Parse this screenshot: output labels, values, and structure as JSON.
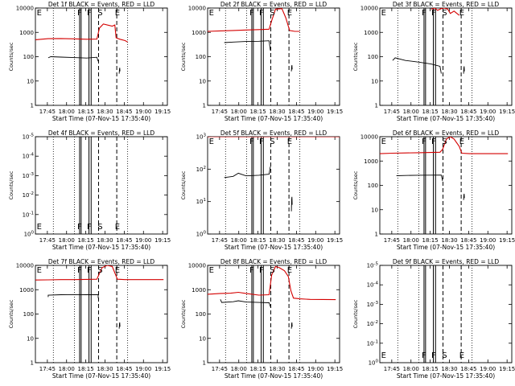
{
  "colors": {
    "events": "#000000",
    "lld": "#d40000",
    "background": "#ffffff"
  },
  "shared": {
    "xlabel": "Start Time (07-Nov-15 17:35:40)",
    "ylabel": "Counts/sec",
    "xticks": [
      "17:45",
      "18:00",
      "18:15",
      "18:30",
      "18:45",
      "19:00",
      "19:15"
    ],
    "x_tick_minutes": [
      9.33,
      24.33,
      39.33,
      54.33,
      69.33,
      84.33,
      99.33
    ],
    "xlim_minutes": [
      0,
      103
    ],
    "ylim": [
      1,
      10000
    ],
    "yscale": "log",
    "yticks": [
      "1",
      "10",
      "100",
      "1000",
      "10000"
    ],
    "ytick_values": [
      1,
      10,
      100,
      1000,
      10000
    ]
  },
  "chart_data": [
    {
      "type": "line",
      "title": "Det 1f BLACK = Events, RED = LLD",
      "x_unit": "minutes after 17:35:40",
      "ylim": [
        1,
        10000
      ],
      "dotted_lines": [
        14,
        30.5,
        72
      ],
      "solid_lines": [
        34.5,
        35.7,
        41.8,
        43.5
      ],
      "dashed_lines": [
        49.3,
        63.5
      ],
      "markers": [
        {
          "label": "E",
          "x": 3
        },
        {
          "label": "F",
          "x": 34.5
        },
        {
          "label": "F",
          "x": 42
        },
        {
          "label": "S",
          "x": 50.5
        },
        {
          "label": "E",
          "x": 64
        }
      ],
      "series": [
        {
          "color": "#d40000",
          "x": [
            0,
            10,
            20,
            30,
            40,
            48,
            50,
            53,
            60,
            62,
            63,
            66,
            70,
            72
          ],
          "y": [
            500,
            550,
            560,
            540,
            520,
            530,
            1500,
            2200,
            1800,
            2000,
            600,
            520,
            460,
            400
          ]
        },
        {
          "color": "#000000",
          "x": [
            10,
            12,
            20,
            30,
            40,
            48,
            49
          ],
          "y": [
            90,
            100,
            96,
            92,
            88,
            95,
            65
          ]
        },
        {
          "color": "#000000",
          "x": [
            65.4,
            65.6,
            65.8,
            66
          ],
          "y": [
            20,
            30,
            35,
            25
          ]
        }
      ]
    },
    {
      "type": "line",
      "title": "Det 2f BLACK = Events, RED = LLD",
      "x_unit": "minutes after 17:35:40",
      "ylim": [
        1,
        10000
      ],
      "dotted_lines": [
        14,
        30.5,
        72
      ],
      "solid_lines": [
        34.5,
        35.7,
        41.8,
        43.5
      ],
      "dashed_lines": [
        49.3,
        63.5
      ],
      "markers": [
        {
          "label": "E",
          "x": 3
        },
        {
          "label": "F",
          "x": 34.5
        },
        {
          "label": "F",
          "x": 42
        },
        {
          "label": "S",
          "x": 50.5
        },
        {
          "label": "E",
          "x": 64
        }
      ],
      "series": [
        {
          "color": "#d40000",
          "x": [
            0,
            10,
            20,
            30,
            40,
            48,
            50,
            53,
            58,
            61,
            64,
            68,
            72
          ],
          "y": [
            1100,
            1150,
            1200,
            1250,
            1300,
            1350,
            3000,
            9000,
            9500,
            4000,
            1200,
            1100,
            1100
          ]
        },
        {
          "color": "#000000",
          "x": [
            13,
            20,
            30,
            40,
            48,
            49
          ],
          "y": [
            380,
            400,
            420,
            430,
            450,
            180
          ]
        },
        {
          "color": "#000000",
          "x": [
            65.4,
            65.6,
            65.8,
            66
          ],
          "y": [
            25,
            40,
            45,
            30
          ]
        }
      ]
    },
    {
      "type": "line",
      "title": "Det 3f BLACK = Events, RED = LLD",
      "x_unit": "minutes after 17:35:40",
      "ylim": [
        1,
        10000
      ],
      "dotted_lines": [
        14,
        30.5,
        72
      ],
      "solid_lines": [
        34.5,
        35.7,
        41.8,
        43.5
      ],
      "dashed_lines": [
        49.3,
        63.5
      ],
      "markers": [
        {
          "label": "E",
          "x": 3
        },
        {
          "label": "F",
          "x": 34.5
        },
        {
          "label": "F",
          "x": 42
        },
        {
          "label": "S",
          "x": 50.5
        },
        {
          "label": "E",
          "x": 64
        }
      ],
      "series": [
        {
          "color": "#d40000",
          "x": [
            40,
            43,
            45,
            48,
            50,
            53,
            55,
            58,
            62
          ],
          "y": [
            9000,
            10000,
            8000,
            9500,
            10000,
            9000,
            6000,
            7500,
            5000
          ]
        },
        {
          "color": "#000000",
          "x": [
            10,
            12,
            20,
            30,
            40,
            47,
            48
          ],
          "y": [
            70,
            90,
            70,
            60,
            50,
            40,
            20
          ]
        },
        {
          "color": "#000000",
          "x": [
            65.4,
            65.6,
            65.8,
            66
          ],
          "y": [
            20,
            35,
            40,
            25
          ]
        }
      ]
    },
    {
      "type": "line",
      "title": "Det 4f BLACK = Events, RED = LLD",
      "x_unit": "minutes after 17:35:40",
      "ylim": [
        1,
        1e-05
      ],
      "yticks": [
        "10^-5",
        "10^-4",
        "10^-3",
        "10^-2",
        "10^-1",
        "10^0"
      ],
      "dotted_lines": [
        14,
        30.5,
        72
      ],
      "solid_lines": [
        34.5,
        35.7,
        41.8,
        43.5
      ],
      "dashed_lines": [
        49.3,
        63.5
      ],
      "markers": [
        {
          "label": "E",
          "x": 3
        },
        {
          "label": "F",
          "x": 34.5
        },
        {
          "label": "F",
          "x": 42
        },
        {
          "label": "S",
          "x": 50.5
        },
        {
          "label": "E",
          "x": 64
        }
      ],
      "series": []
    },
    {
      "type": "line",
      "title": "Det 5f BLACK = Events, RED = LLD",
      "x_unit": "minutes after 17:35:40",
      "ylim": [
        1,
        1000
      ],
      "yticks": [
        "10^0",
        "10^1",
        "10^2",
        "10^3"
      ],
      "dotted_lines": [
        14,
        30.5,
        72
      ],
      "solid_lines": [
        34.5,
        35.7,
        41.8,
        43.5
      ],
      "dashed_lines": [
        49.3,
        63.5
      ],
      "markers": [
        {
          "label": "E",
          "x": 3
        },
        {
          "label": "F",
          "x": 34.5
        },
        {
          "label": "F",
          "x": 42
        },
        {
          "label": "S",
          "x": 50.5
        },
        {
          "label": "E",
          "x": 64
        }
      ],
      "series": [
        {
          "color": "#d40000",
          "x": [
            0,
            103
          ],
          "y": [
            1000,
            1000
          ]
        },
        {
          "color": "#000000",
          "x": [
            13,
            20,
            24,
            30,
            40,
            48,
            49
          ],
          "y": [
            55,
            60,
            75,
            62,
            65,
            70,
            120
          ]
        },
        {
          "color": "#000000",
          "x": [
            65.4,
            65.6,
            65.8,
            66
          ],
          "y": [
            5,
            12,
            14,
            8
          ]
        }
      ]
    },
    {
      "type": "line",
      "title": "Det 6f BLACK = Events, RED = LLD",
      "x_unit": "minutes after 17:35:40",
      "ylim": [
        1,
        10000
      ],
      "dotted_lines": [
        14,
        30.5,
        72
      ],
      "solid_lines": [
        34.5,
        35.7,
        41.8,
        43.5
      ],
      "dashed_lines": [
        49.3,
        63.5
      ],
      "markers": [
        {
          "label": "E",
          "x": 3
        },
        {
          "label": "F",
          "x": 34.5
        },
        {
          "label": "F",
          "x": 42
        },
        {
          "label": "S",
          "x": 50.5
        },
        {
          "label": "E",
          "x": 64
        }
      ],
      "series": [
        {
          "color": "#d40000",
          "x": [
            0,
            10,
            20,
            30,
            40,
            47,
            49,
            52,
            55,
            58,
            62,
            64,
            70,
            80,
            100
          ],
          "y": [
            2000,
            2100,
            2150,
            2200,
            2250,
            2300,
            3000,
            8000,
            10000,
            8000,
            4000,
            2100,
            2000,
            2000,
            2000
          ]
        },
        {
          "color": "#000000",
          "x": [
            13,
            20,
            30,
            40,
            48,
            49
          ],
          "y": [
            250,
            255,
            260,
            262,
            265,
            150
          ]
        },
        {
          "color": "#000000",
          "x": [
            65.4,
            65.6,
            65.8,
            66
          ],
          "y": [
            25,
            40,
            45,
            30
          ]
        }
      ]
    },
    {
      "type": "line",
      "title": "Det 7f BLACK = Events, RED = LLD",
      "x_unit": "minutes after 17:35:40",
      "ylim": [
        1,
        10000
      ],
      "dotted_lines": [
        14,
        30.5,
        72
      ],
      "solid_lines": [
        34.5,
        35.7,
        41.8,
        43.5
      ],
      "dashed_lines": [
        49.3,
        63.5
      ],
      "markers": [
        {
          "label": "E",
          "x": 3
        },
        {
          "label": "F",
          "x": 34.5
        },
        {
          "label": "F",
          "x": 42
        },
        {
          "label": "S",
          "x": 50.5
        },
        {
          "label": "E",
          "x": 64
        }
      ],
      "series": [
        {
          "color": "#d40000",
          "x": [
            0,
            10,
            20,
            30,
            40,
            48,
            52,
            56,
            60,
            64,
            70,
            80,
            100
          ],
          "y": [
            2500,
            2550,
            2600,
            2600,
            2650,
            2700,
            8000,
            10000,
            9000,
            2700,
            2600,
            2600,
            2600
          ]
        },
        {
          "color": "#000000",
          "x": [
            10,
            10,
            20,
            30,
            40,
            49,
            49
          ],
          "y": [
            500,
            600,
            620,
            630,
            620,
            620,
            450
          ]
        },
        {
          "color": "#000000",
          "x": [
            65.4,
            65.6,
            65.8,
            66
          ],
          "y": [
            25,
            40,
            45,
            30
          ]
        }
      ]
    },
    {
      "type": "line",
      "title": "Det 8f BLACK = Events, RED = LLD",
      "x_unit": "minutes after 17:35:40",
      "ylim": [
        1,
        10000
      ],
      "dotted_lines": [
        14,
        30.5,
        72
      ],
      "solid_lines": [
        34.5,
        35.7,
        41.8,
        43.5
      ],
      "dashed_lines": [
        49.3,
        63.5
      ],
      "markers": [
        {
          "label": "E",
          "x": 3
        },
        {
          "label": "F",
          "x": 34.5
        },
        {
          "label": "F",
          "x": 42
        },
        {
          "label": "S",
          "x": 50.5
        },
        {
          "label": "E",
          "x": 64
        }
      ],
      "series": [
        {
          "color": "#d40000",
          "x": [
            0,
            10,
            18,
            24,
            30,
            40,
            48,
            50,
            53,
            56,
            60,
            63,
            65,
            67,
            72,
            80,
            100
          ],
          "y": [
            650,
            700,
            720,
            780,
            700,
            600,
            620,
            4000,
            9000,
            8000,
            6000,
            3500,
            900,
            450,
            420,
            400,
            390
          ]
        },
        {
          "color": "#000000",
          "x": [
            10,
            11,
            20,
            24,
            30,
            40,
            48,
            49
          ],
          "y": [
            400,
            300,
            320,
            350,
            310,
            300,
            290,
            200
          ]
        },
        {
          "color": "#000000",
          "x": [
            65.4,
            65.6,
            65.8,
            66
          ],
          "y": [
            25,
            40,
            45,
            30
          ]
        }
      ]
    },
    {
      "type": "line",
      "title": "Det 9f BLACK = Events, RED = LLD",
      "x_unit": "minutes after 17:35:40",
      "ylim": [
        1,
        1e-05
      ],
      "yticks": [
        "10^-5",
        "10^-4",
        "10^-3",
        "10^-2",
        "10^-1",
        "10^0"
      ],
      "dotted_lines": [
        14,
        30.5,
        72
      ],
      "solid_lines": [
        34.5,
        35.7,
        41.8,
        43.5
      ],
      "dashed_lines": [
        49.3,
        63.5
      ],
      "markers": [
        {
          "label": "E",
          "x": 3
        },
        {
          "label": "F",
          "x": 34.5
        },
        {
          "label": "F",
          "x": 42
        },
        {
          "label": "S",
          "x": 50.5
        },
        {
          "label": "E",
          "x": 64
        }
      ],
      "series": []
    }
  ]
}
